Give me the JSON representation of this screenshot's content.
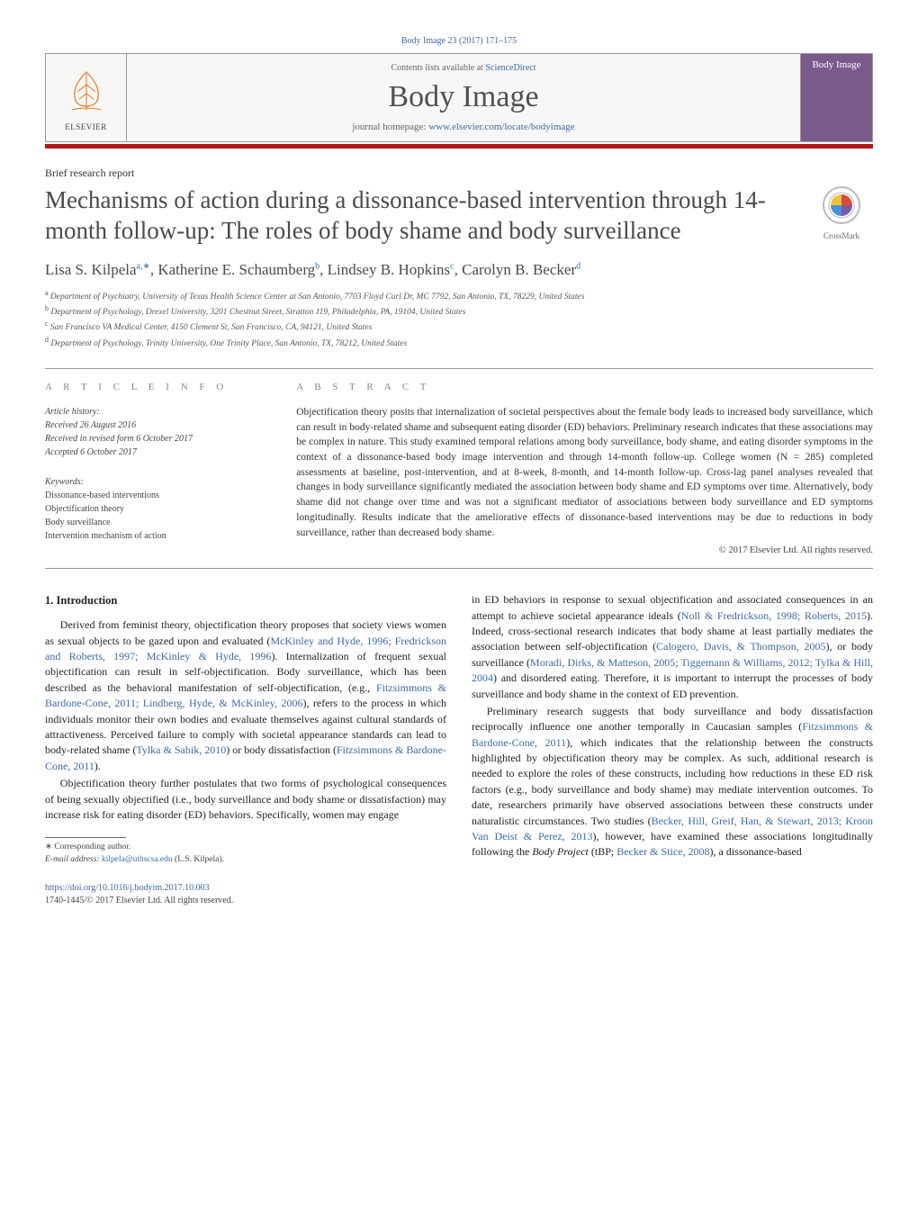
{
  "top_citation": "Body Image 23 (2017) 171–175",
  "header": {
    "contents_prefix": "Contents lists available at ",
    "contents_link": "ScienceDirect",
    "journal": "Body Image",
    "homepage_prefix": "journal homepage: ",
    "homepage_url": "www.elsevier.com/locate/bodyimage",
    "publisher": "ELSEVIER",
    "cover_title": "Body Image"
  },
  "article_type": "Brief research report",
  "title": "Mechanisms of action during a dissonance-based intervention through 14-month follow-up: The roles of body shame and body surveillance",
  "crossmark": "CrossMark",
  "authors_html": "Lisa S. Kilpela|a,*|, Katherine E. Schaumberg|b|, Lindsey B. Hopkins|c|, Carolyn B. Becker|d|",
  "authors": [
    {
      "name": "Lisa S. Kilpela",
      "sup": "a,∗"
    },
    {
      "name": "Katherine E. Schaumberg",
      "sup": "b"
    },
    {
      "name": "Lindsey B. Hopkins",
      "sup": "c"
    },
    {
      "name": "Carolyn B. Becker",
      "sup": "d"
    }
  ],
  "affiliations": [
    {
      "sup": "a",
      "text": "Department of Psychiatry, University of Texas Health Science Center at San Antonio, 7703 Floyd Curl Dr, MC 7792, San Antonio, TX, 78229, United States"
    },
    {
      "sup": "b",
      "text": "Department of Psychology, Drexel University, 3201 Chestnut Street, Stratton 119, Philadelphia, PA, 19104, United States"
    },
    {
      "sup": "c",
      "text": "San Francisco VA Medical Center, 4150 Clement St, San Francisco, CA, 94121, United States"
    },
    {
      "sup": "d",
      "text": "Department of Psychology, Trinity University, One Trinity Place, San Antonio, TX, 78212, United States"
    }
  ],
  "info": {
    "label": "a r t i c l e   i n f o",
    "history_label": "Article history:",
    "history": [
      "Received 26 August 2016",
      "Received in revised form 6 October 2017",
      "Accepted 6 October 2017"
    ],
    "keywords_label": "Keywords:",
    "keywords": [
      "Dissonance-based interventions",
      "Objectification theory",
      "Body surveillance",
      "Intervention mechanism of action"
    ]
  },
  "abstract": {
    "label": "a b s t r a c t",
    "text": "Objectification theory posits that internalization of societal perspectives about the female body leads to increased body surveillance, which can result in body-related shame and subsequent eating disorder (ED) behaviors. Preliminary research indicates that these associations may be complex in nature. This study examined temporal relations among body surveillance, body shame, and eating disorder symptoms in the context of a dissonance-based body image intervention and through 14-month follow-up. College women (N = 285) completed assessments at baseline, post-intervention, and at 8-week, 8-month, and 14-month follow-up. Cross-lag panel analyses revealed that changes in body surveillance significantly mediated the association between body shame and ED symptoms over time. Alternatively, body shame did not change over time and was not a significant mediator of associations between body surveillance and ED symptoms longitudinally. Results indicate that the ameliorative effects of dissonance-based interventions may be due to reductions in body surveillance, rather than decreased body shame.",
    "copyright": "© 2017 Elsevier Ltd. All rights reserved."
  },
  "section1": {
    "heading": "1. Introduction",
    "p1_pre": "Derived from feminist theory, objectification theory proposes that society views women as sexual objects to be gazed upon and evaluated (",
    "p1_link1": "McKinley and Hyde, 1996; Fredrickson and Roberts, 1997; McKinley & Hyde, 1996",
    "p1_mid1": "). Internalization of frequent sexual objectification can result in self-objectification. Body surveillance, which has been described as the behavioral manifestation of self-objectification, (e.g., ",
    "p1_link2": "Fitzsimmons & Bardone-Cone, 2011; Lindberg, Hyde, & McKinley, 2006",
    "p1_mid2": "), refers to the process in which individuals monitor their own bodies and evaluate themselves against cultural standards of attractiveness. Perceived failure to comply with societal appearance standards can lead to body-related shame (",
    "p1_link3": "Tylka & Sabik, 2010",
    "p1_mid3": ") or body dissatisfaction (",
    "p1_link4": "Fitzsimmons & Bardone-Cone, 2011",
    "p1_post": ").",
    "p2": "Objectification theory further postulates that two forms of psychological consequences of being sexually objectified (i.e., body surveillance and body shame or dissatisfaction) may increase risk for eating disorder (ED) behaviors. Specifically, women may engage",
    "p3_pre": "in ED behaviors in response to sexual objectification and associated consequences in an attempt to achieve societal appearance ideals (",
    "p3_link1": "Noll & Fredrickson, 1998; Roberts, 2015",
    "p3_mid1": "). Indeed, cross-sectional research indicates that body shame at least partially mediates the association between self-objectification (",
    "p3_link2": "Calogero, Davis, & Thompson, 2005",
    "p3_mid2": "), or body surveillance (",
    "p3_link3": "Moradi, Dirks, & Matteson, 2005; Tiggemann & Williams, 2012; Tylka & Hill, 2004",
    "p3_mid3": ") and disordered eating. Therefore, it is important to interrupt the processes of body surveillance and body shame in the context of ED prevention.",
    "p4_pre": "Preliminary research suggests that body surveillance and body dissatisfaction reciprocally influence one another temporally in Caucasian samples (",
    "p4_link1": "Fitzsimmons & Bardone-Cone, 2011",
    "p4_mid1": "), which indicates that the relationship between the constructs highlighted by objectification theory may be complex. As such, additional research is needed to explore the roles of these constructs, including how reductions in these ED risk factors (e.g., body surveillance and body shame) may mediate intervention outcomes. To date, researchers primarily have observed associations between these constructs under naturalistic circumstances. Two studies (",
    "p4_link2": "Becker, Hill, Greif, Han, & Stewart, 2013; Kroon Van Deist & Perez, 2013",
    "p4_mid2": "), however, have examined these associations longitudinally following the ",
    "p4_em": "Body Project",
    "p4_mid3": " (tBP; ",
    "p4_link3": "Becker & Stice, 2008",
    "p4_post": "), a dissonance-based"
  },
  "footnote": {
    "corr": "∗ Corresponding author.",
    "email_label": "E-mail address: ",
    "email": "kilpela@uthscsa.edu",
    "email_paren": " (L.S. Kilpela)."
  },
  "footer": {
    "doi": "https://doi.org/10.1016/j.bodyim.2017.10.003",
    "issn": "1740-1445/© 2017 Elsevier Ltd. All rights reserved."
  },
  "colors": {
    "link": "#3a6aa8",
    "redbar": "#b01818",
    "cover": "#7a5a8a",
    "elsevier": "#e87722"
  }
}
